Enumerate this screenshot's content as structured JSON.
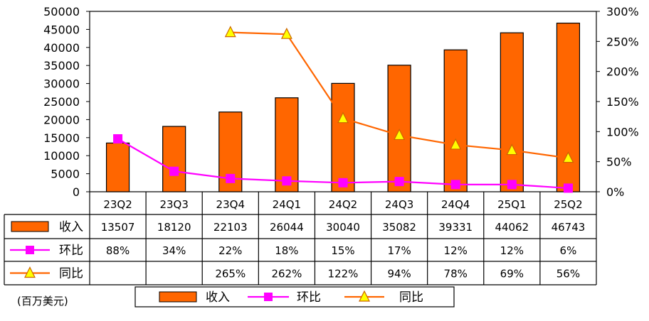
{
  "chart_data": {
    "type": "bar",
    "categories": [
      "23Q2",
      "23Q3",
      "23Q4",
      "24Q1",
      "24Q2",
      "24Q3",
      "24Q4",
      "25Q1",
      "25Q2"
    ],
    "series": [
      {
        "name": "收入",
        "type": "bar",
        "axis": "left",
        "color": "#FF6600",
        "values": [
          13507,
          18120,
          22103,
          26044,
          30040,
          35082,
          39331,
          44062,
          46743
        ],
        "table_values": [
          "13507",
          "18120",
          "22103",
          "26044",
          "30040",
          "35082",
          "39331",
          "44062",
          "46743"
        ]
      },
      {
        "name": "环比",
        "type": "line",
        "axis": "right",
        "color": "#FF00FF",
        "marker": "square",
        "values": [
          88,
          34,
          22,
          18,
          15,
          17,
          12,
          12,
          6
        ],
        "table_values": [
          "88%",
          "34%",
          "22%",
          "18%",
          "15%",
          "17%",
          "12%",
          "12%",
          "6%"
        ]
      },
      {
        "name": "同比",
        "type": "line",
        "axis": "right",
        "color": "#FF6600",
        "marker": "triangle",
        "marker_fill": "#FFFF00",
        "values": [
          null,
          null,
          265,
          262,
          122,
          94,
          78,
          69,
          56
        ],
        "table_values": [
          "",
          "",
          "265%",
          "262%",
          "122%",
          "94%",
          "78%",
          "69%",
          "56%"
        ]
      }
    ],
    "ylim_left": [
      0,
      50000
    ],
    "yticks_left": [
      "50000",
      "45000",
      "40000",
      "35000",
      "30000",
      "25000",
      "20000",
      "15000",
      "10000",
      "5000",
      "0"
    ],
    "ylim_right": [
      0,
      300
    ],
    "yticks_right": [
      "300%",
      "250%",
      "200%",
      "150%",
      "100%",
      "50%",
      "0%"
    ],
    "grid": false,
    "legend_position": "bottom",
    "unit_note": "(百万美元)"
  }
}
